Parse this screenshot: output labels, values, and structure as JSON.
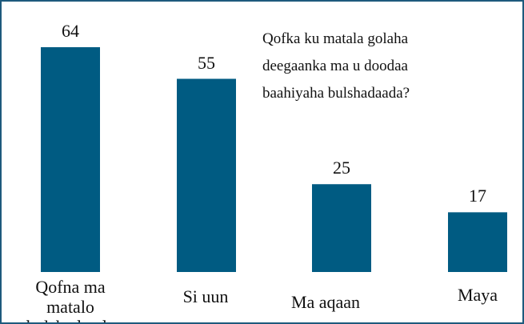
{
  "chart_data": {
    "type": "bar",
    "title": "Qofka ku matala golaha deegaanka ma u doodaa baahiyaha bulshadaada?",
    "categories": [
      "Qofna ma matalo bulshadayda",
      "Si uun",
      "Ma aqaan",
      "Maya"
    ],
    "values": [
      64,
      55,
      25,
      17
    ],
    "color": "#005b82"
  }
}
